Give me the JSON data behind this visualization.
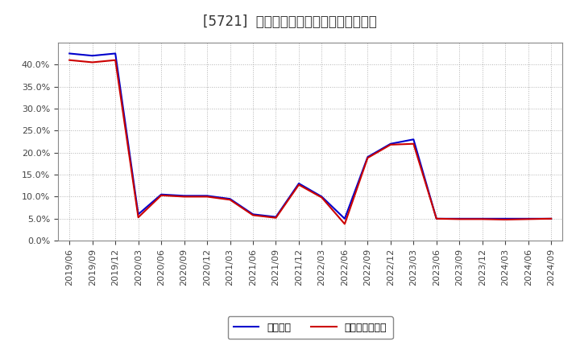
{
  "title": "[5721]  固定比率、固定長期適合率の推移",
  "ylim": [
    0.0,
    0.45
  ],
  "yticks": [
    0.0,
    0.05,
    0.1,
    0.15,
    0.2,
    0.25,
    0.3,
    0.35,
    0.4
  ],
  "x_labels": [
    "2019/06",
    "2019/09",
    "2019/12",
    "2020/03",
    "2020/06",
    "2020/09",
    "2020/12",
    "2021/03",
    "2021/06",
    "2021/09",
    "2021/12",
    "2022/03",
    "2022/06",
    "2022/09",
    "2022/12",
    "2023/03",
    "2023/06",
    "2023/09",
    "2023/12",
    "2024/03",
    "2024/06",
    "2024/09"
  ],
  "fixed_ratio": [
    0.425,
    0.42,
    0.425,
    0.06,
    0.105,
    0.102,
    0.102,
    0.095,
    0.06,
    0.054,
    0.13,
    0.1,
    0.05,
    0.19,
    0.22,
    0.23,
    0.05,
    0.05,
    0.05,
    0.05,
    0.05,
    0.05
  ],
  "fixed_long_ratio": [
    0.41,
    0.405,
    0.41,
    0.053,
    0.103,
    0.1,
    0.1,
    0.093,
    0.058,
    0.052,
    0.127,
    0.098,
    0.038,
    0.188,
    0.218,
    0.22,
    0.05,
    0.049,
    0.049,
    0.048,
    0.049,
    0.05
  ],
  "line1_color": "#0000cc",
  "line2_color": "#cc0000",
  "line1_label": "固定比率",
  "line2_label": "固定長期適合率",
  "background_color": "#ffffff",
  "grid_color": "#aaaaaa",
  "title_fontsize": 12,
  "tick_fontsize": 8,
  "legend_fontsize": 9
}
